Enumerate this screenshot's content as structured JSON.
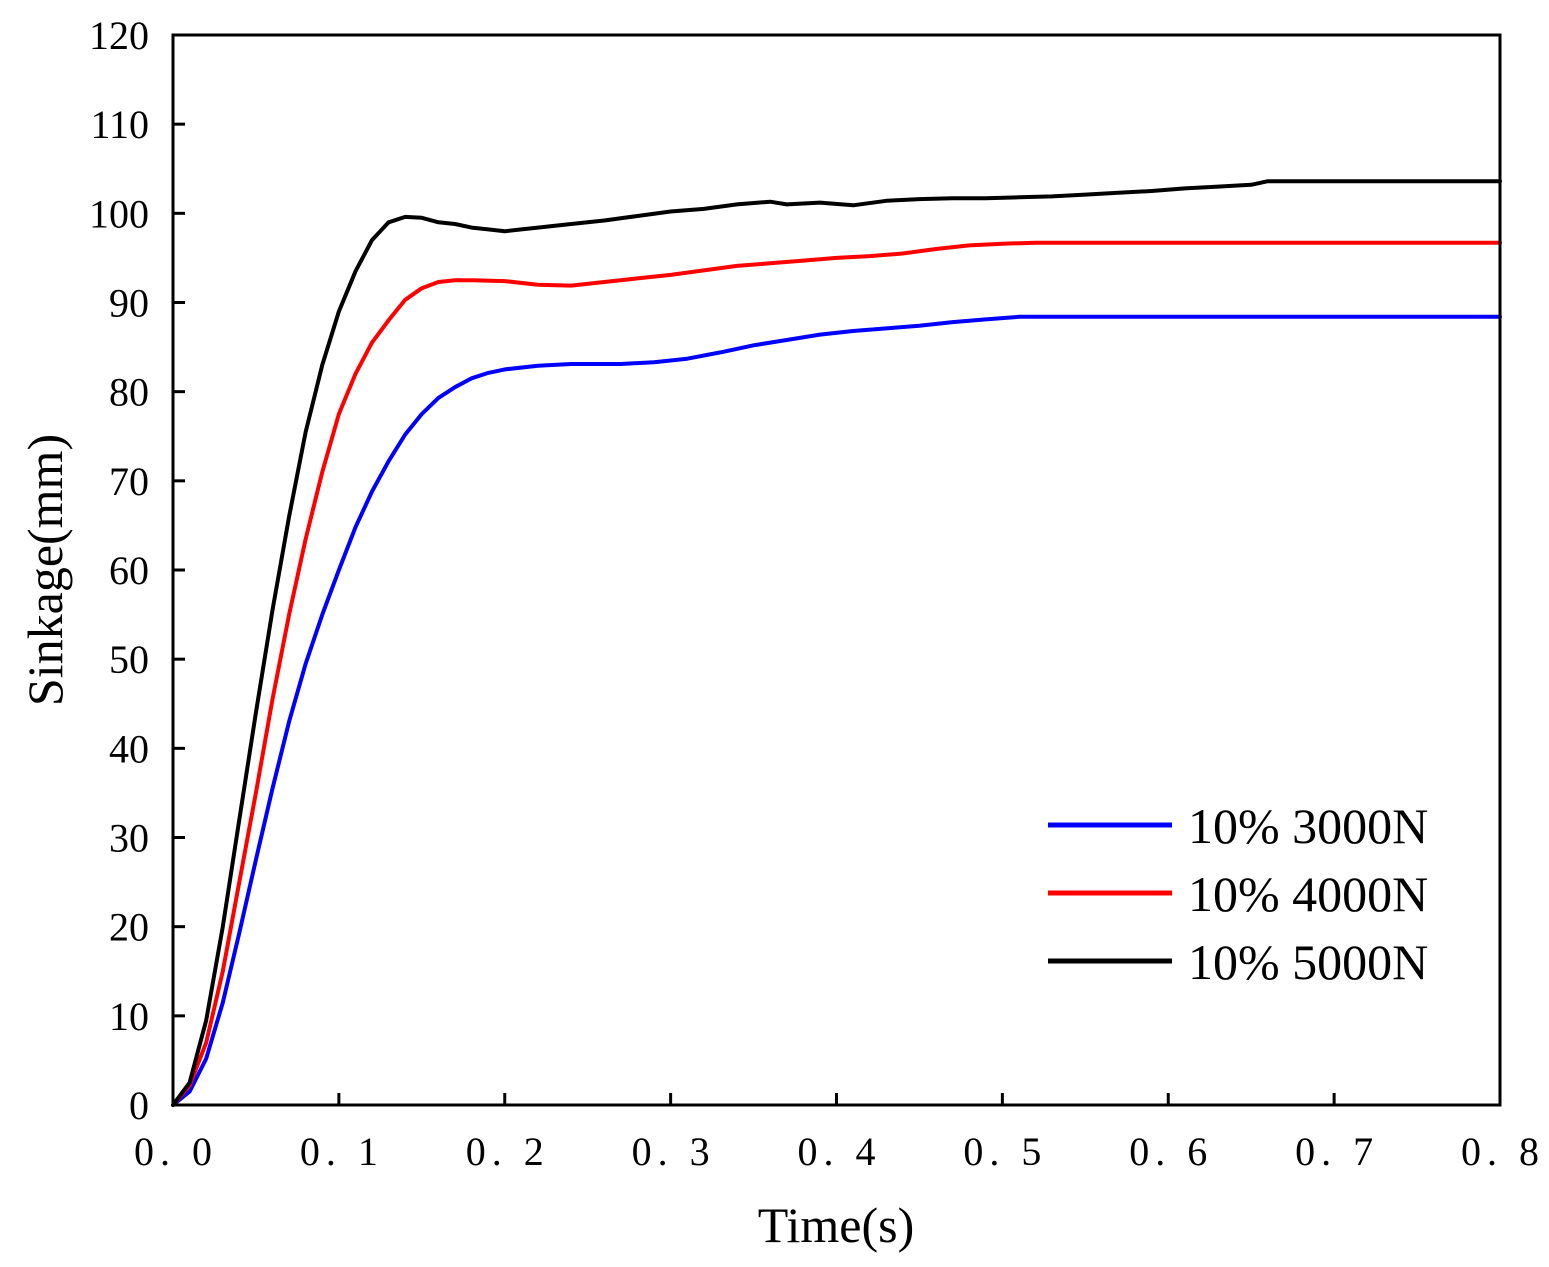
{
  "chart_data": {
    "type": "line",
    "title": "",
    "xlabel": "Time(s)",
    "ylabel": "Sinkage(mm)",
    "xlim": [
      0,
      0.8
    ],
    "ylim": [
      0,
      120
    ],
    "x_ticks": [
      0,
      0.1,
      0.2,
      0.3,
      0.4,
      0.5,
      0.6,
      0.7,
      0.8
    ],
    "x_tick_labels": [
      "0. 0",
      "0. 1",
      "0. 2",
      "0. 3",
      "0. 4",
      "0. 5",
      "0. 6",
      "0. 7",
      "0. 8"
    ],
    "y_ticks": [
      0,
      10,
      20,
      30,
      40,
      50,
      60,
      70,
      80,
      90,
      100,
      110,
      120
    ],
    "y_tick_labels": [
      "0",
      "10",
      "20",
      "30",
      "40",
      "50",
      "60",
      "70",
      "80",
      "90",
      "100",
      "110",
      "120"
    ],
    "grid": false,
    "legend_position": "bottom-right",
    "series": [
      {
        "name": "10% 3000N",
        "color": "#0000ff",
        "x": [
          0,
          0.01,
          0.02,
          0.03,
          0.04,
          0.05,
          0.06,
          0.07,
          0.08,
          0.09,
          0.1,
          0.11,
          0.12,
          0.13,
          0.14,
          0.15,
          0.16,
          0.17,
          0.18,
          0.19,
          0.2,
          0.22,
          0.24,
          0.27,
          0.29,
          0.31,
          0.33,
          0.35,
          0.37,
          0.39,
          0.41,
          0.43,
          0.45,
          0.47,
          0.49,
          0.51,
          0.55,
          0.6,
          0.65,
          0.7,
          0.75,
          0.8
        ],
        "y": [
          0,
          1.5,
          5.2,
          11.5,
          19.3,
          27.5,
          35.5,
          43.0,
          49.5,
          55.0,
          60.0,
          64.8,
          68.8,
          72.2,
          75.2,
          77.5,
          79.3,
          80.5,
          81.5,
          82.1,
          82.5,
          82.9,
          83.1,
          83.1,
          83.3,
          83.7,
          84.4,
          85.2,
          85.8,
          86.4,
          86.8,
          87.1,
          87.4,
          87.8,
          88.1,
          88.4,
          88.4,
          88.4,
          88.4,
          88.4,
          88.4,
          88.4
        ]
      },
      {
        "name": "10% 4000N",
        "color": "#ff0000",
        "x": [
          0,
          0.01,
          0.02,
          0.03,
          0.04,
          0.05,
          0.06,
          0.07,
          0.08,
          0.09,
          0.1,
          0.11,
          0.12,
          0.13,
          0.14,
          0.15,
          0.16,
          0.17,
          0.18,
          0.2,
          0.22,
          0.24,
          0.26,
          0.28,
          0.3,
          0.32,
          0.34,
          0.36,
          0.38,
          0.4,
          0.42,
          0.44,
          0.46,
          0.48,
          0.5,
          0.52,
          0.6,
          0.7,
          0.8
        ],
        "y": [
          0,
          2.2,
          7.0,
          15.0,
          25.0,
          35.0,
          45.5,
          55.0,
          63.5,
          71.0,
          77.5,
          82.0,
          85.5,
          88.0,
          90.3,
          91.6,
          92.3,
          92.5,
          92.5,
          92.4,
          92.0,
          91.9,
          92.3,
          92.7,
          93.1,
          93.6,
          94.1,
          94.4,
          94.7,
          95.0,
          95.2,
          95.5,
          96.0,
          96.4,
          96.6,
          96.7,
          96.7,
          96.7,
          96.7
        ]
      },
      {
        "name": "10% 5000N",
        "color": "#000000",
        "x": [
          0,
          0.01,
          0.02,
          0.03,
          0.04,
          0.05,
          0.06,
          0.07,
          0.08,
          0.09,
          0.1,
          0.11,
          0.12,
          0.13,
          0.14,
          0.15,
          0.16,
          0.17,
          0.18,
          0.19,
          0.2,
          0.21,
          0.22,
          0.24,
          0.26,
          0.28,
          0.3,
          0.32,
          0.34,
          0.36,
          0.37,
          0.39,
          0.41,
          0.43,
          0.45,
          0.47,
          0.49,
          0.51,
          0.53,
          0.55,
          0.57,
          0.59,
          0.61,
          0.63,
          0.65,
          0.66,
          0.7,
          0.75,
          0.8
        ],
        "y": [
          0,
          2.5,
          9.5,
          20.0,
          32.0,
          44.0,
          55.5,
          66.0,
          75.5,
          83.0,
          89.0,
          93.5,
          97.0,
          99.0,
          99.6,
          99.5,
          99.0,
          98.8,
          98.4,
          98.2,
          98.0,
          98.2,
          98.4,
          98.8,
          99.2,
          99.7,
          100.2,
          100.5,
          101.0,
          101.3,
          101.0,
          101.2,
          100.9,
          101.4,
          101.6,
          101.7,
          101.7,
          101.8,
          101.9,
          102.1,
          102.3,
          102.5,
          102.8,
          103.0,
          103.2,
          103.6,
          103.6,
          103.6,
          103.6
        ]
      }
    ]
  }
}
